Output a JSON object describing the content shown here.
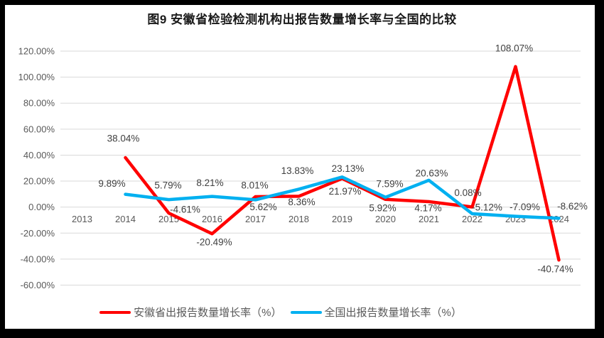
{
  "title": "图9 安徽省检验检测机构出报告数量增长率与全国的比较",
  "colors": {
    "frame": "#000000",
    "background": "#ffffff",
    "grid": "#d9d9d9",
    "axis_text": "#595959",
    "data_label_text": "#404040",
    "series_anhui": "#ff0000",
    "series_national": "#00b0f0"
  },
  "chart_data": {
    "type": "line",
    "title": "图9 安徽省检验检测机构出报告数量增长率与全国的比较",
    "categories": [
      "2013",
      "2014",
      "2015",
      "2016",
      "2017",
      "2018",
      "2019",
      "2020",
      "2021",
      "2022",
      "2023",
      "2024"
    ],
    "grid": true,
    "legend_position": "bottom",
    "y_axis": {
      "min": -60,
      "max": 120,
      "step": 20,
      "tick_labels": [
        "120.00%",
        "100.00%",
        "80.00%",
        "60.00%",
        "40.00%",
        "20.00%",
        "0.00%",
        "-20.00%",
        "-40.00%",
        "-60.00%"
      ]
    },
    "series": [
      {
        "name": "安徽省出报告数量增长率（%）",
        "color": "#ff0000",
        "values": [
          null,
          38.04,
          -4.61,
          -20.49,
          8.01,
          8.36,
          21.97,
          5.92,
          4.17,
          0.08,
          108.07,
          -40.74
        ],
        "labels": [
          "",
          "38.04%",
          "-4.61%",
          "-20.49%",
          "8.01%",
          "8.36%",
          "21.97%",
          "5.92%",
          "4.17%",
          "0.08%",
          "108.07%",
          "-40.74%"
        ],
        "label_offsets": [
          [
            0,
            0
          ],
          [
            -3,
            -27
          ],
          [
            23,
            -5
          ],
          [
            3,
            12
          ],
          [
            -1,
            -16
          ],
          [
            4,
            8
          ],
          [
            4,
            18
          ],
          [
            -4,
            12
          ],
          [
            -1,
            9
          ],
          [
            -6,
            -20
          ],
          [
            -2,
            -26
          ],
          [
            -5,
            13
          ]
        ]
      },
      {
        "name": "全国出报告数量增长率（%）",
        "color": "#00b0f0",
        "values": [
          null,
          9.89,
          5.79,
          8.21,
          5.62,
          13.83,
          23.13,
          7.59,
          20.63,
          -5.12,
          -7.09,
          -8.62
        ],
        "labels": [
          "",
          "9.89%",
          "5.79%",
          "8.21%",
          "5.62%",
          "13.83%",
          "23.13%",
          "7.59%",
          "20.63%",
          "-5.12%",
          "-7.09%",
          "-8.62%"
        ],
        "label_offsets": [
          [
            0,
            0
          ],
          [
            -19,
            -15
          ],
          [
            -1,
            -20
          ],
          [
            -3,
            -19
          ],
          [
            11,
            10
          ],
          [
            -2,
            -26
          ],
          [
            8,
            -12
          ],
          [
            6,
            -19
          ],
          [
            4,
            -10
          ],
          [
            21,
            -9
          ],
          [
            13,
            -13
          ],
          [
            19,
            -17
          ]
        ]
      }
    ]
  }
}
